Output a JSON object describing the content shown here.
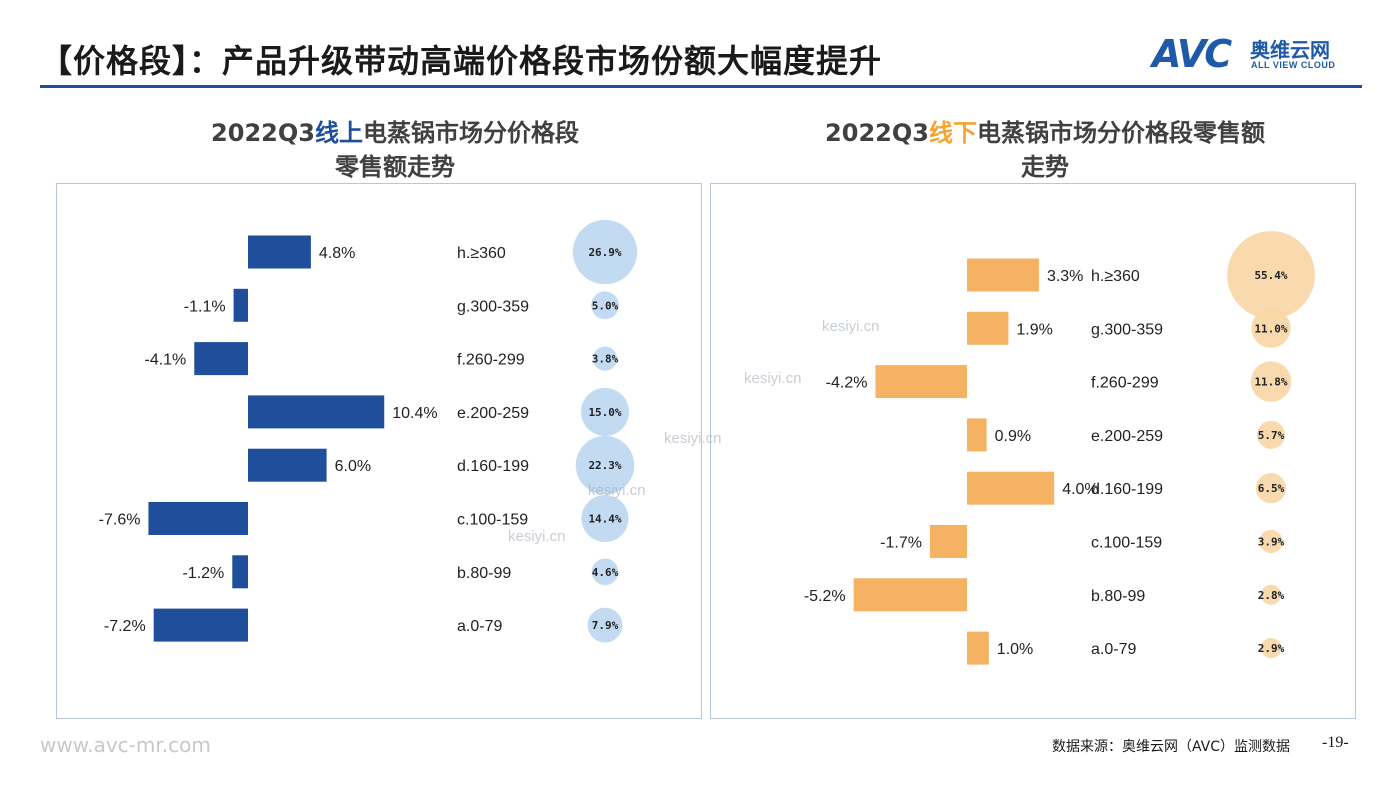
{
  "header": {
    "title": "【价格段】：产品升级带动高端价格段市场份额大幅度提升",
    "logo_mark": "AVC",
    "logo_cn": "奥维云网",
    "logo_en": "ALL VIEW CLOUD"
  },
  "footer": {
    "website": "www.avc-mr.com",
    "source": "数据来源：奥维云网（AVC）监测数据",
    "page": "-19-"
  },
  "watermarks": [
    "kesiyi.cn",
    "kesiyi.cn",
    "kesiyi.cn",
    "kesiyi.cn",
    "kesiyi.cn"
  ],
  "colors": {
    "online": "#1f4e9a",
    "online_bubble": "#bcd7f1",
    "offline": "#f5b263",
    "offline_bubble": "#f8d6a6"
  },
  "chart_data": [
    {
      "type": "bar",
      "title_parts": [
        "2022Q3",
        "线上",
        "电蒸锅市场分价格段",
        "零售额走势"
      ],
      "categories": [
        "h.≥360",
        "g.300-359",
        "f.260-299",
        "e.200-259",
        "d.160-199",
        "c.100-159",
        "b.80-99",
        "a.0-79"
      ],
      "values": [
        4.8,
        -1.1,
        -4.1,
        10.4,
        6.0,
        -7.6,
        -1.2,
        -7.2
      ],
      "value_labels": [
        "4.8%",
        "-1.1%",
        "-4.1%",
        "10.4%",
        "6.0%",
        "-7.6%",
        "-1.2%",
        "-7.2%"
      ],
      "share_values": [
        26.9,
        5.0,
        3.8,
        15.0,
        22.3,
        14.4,
        4.6,
        7.9
      ],
      "share_labels": [
        "26.9%",
        "5.0%",
        "3.8%",
        "15.0%",
        "22.3%",
        "14.4%",
        "4.6%",
        "7.9%"
      ]
    },
    {
      "type": "bar",
      "title_parts": [
        "2022Q3",
        "线下",
        "电蒸锅市场分价格段零售额",
        "走势"
      ],
      "categories": [
        "h.≥360",
        "g.300-359",
        "f.260-299",
        "e.200-259",
        "d.160-199",
        "c.100-159",
        "b.80-99",
        "a.0-79"
      ],
      "values": [
        3.3,
        1.9,
        -4.2,
        0.9,
        4.0,
        -1.7,
        -5.2,
        1.0
      ],
      "value_labels": [
        "3.3%",
        "1.9%",
        "-4.2%",
        "0.9%",
        "4.0%",
        "-1.7%",
        "-5.2%",
        "1.0%"
      ],
      "share_values": [
        55.4,
        11.0,
        11.8,
        5.7,
        6.5,
        3.9,
        2.8,
        2.9
      ],
      "share_labels": [
        "55.4%",
        "11.0%",
        "11.8%",
        "5.7%",
        "6.5%",
        "3.9%",
        "2.8%",
        "2.9%"
      ]
    }
  ]
}
